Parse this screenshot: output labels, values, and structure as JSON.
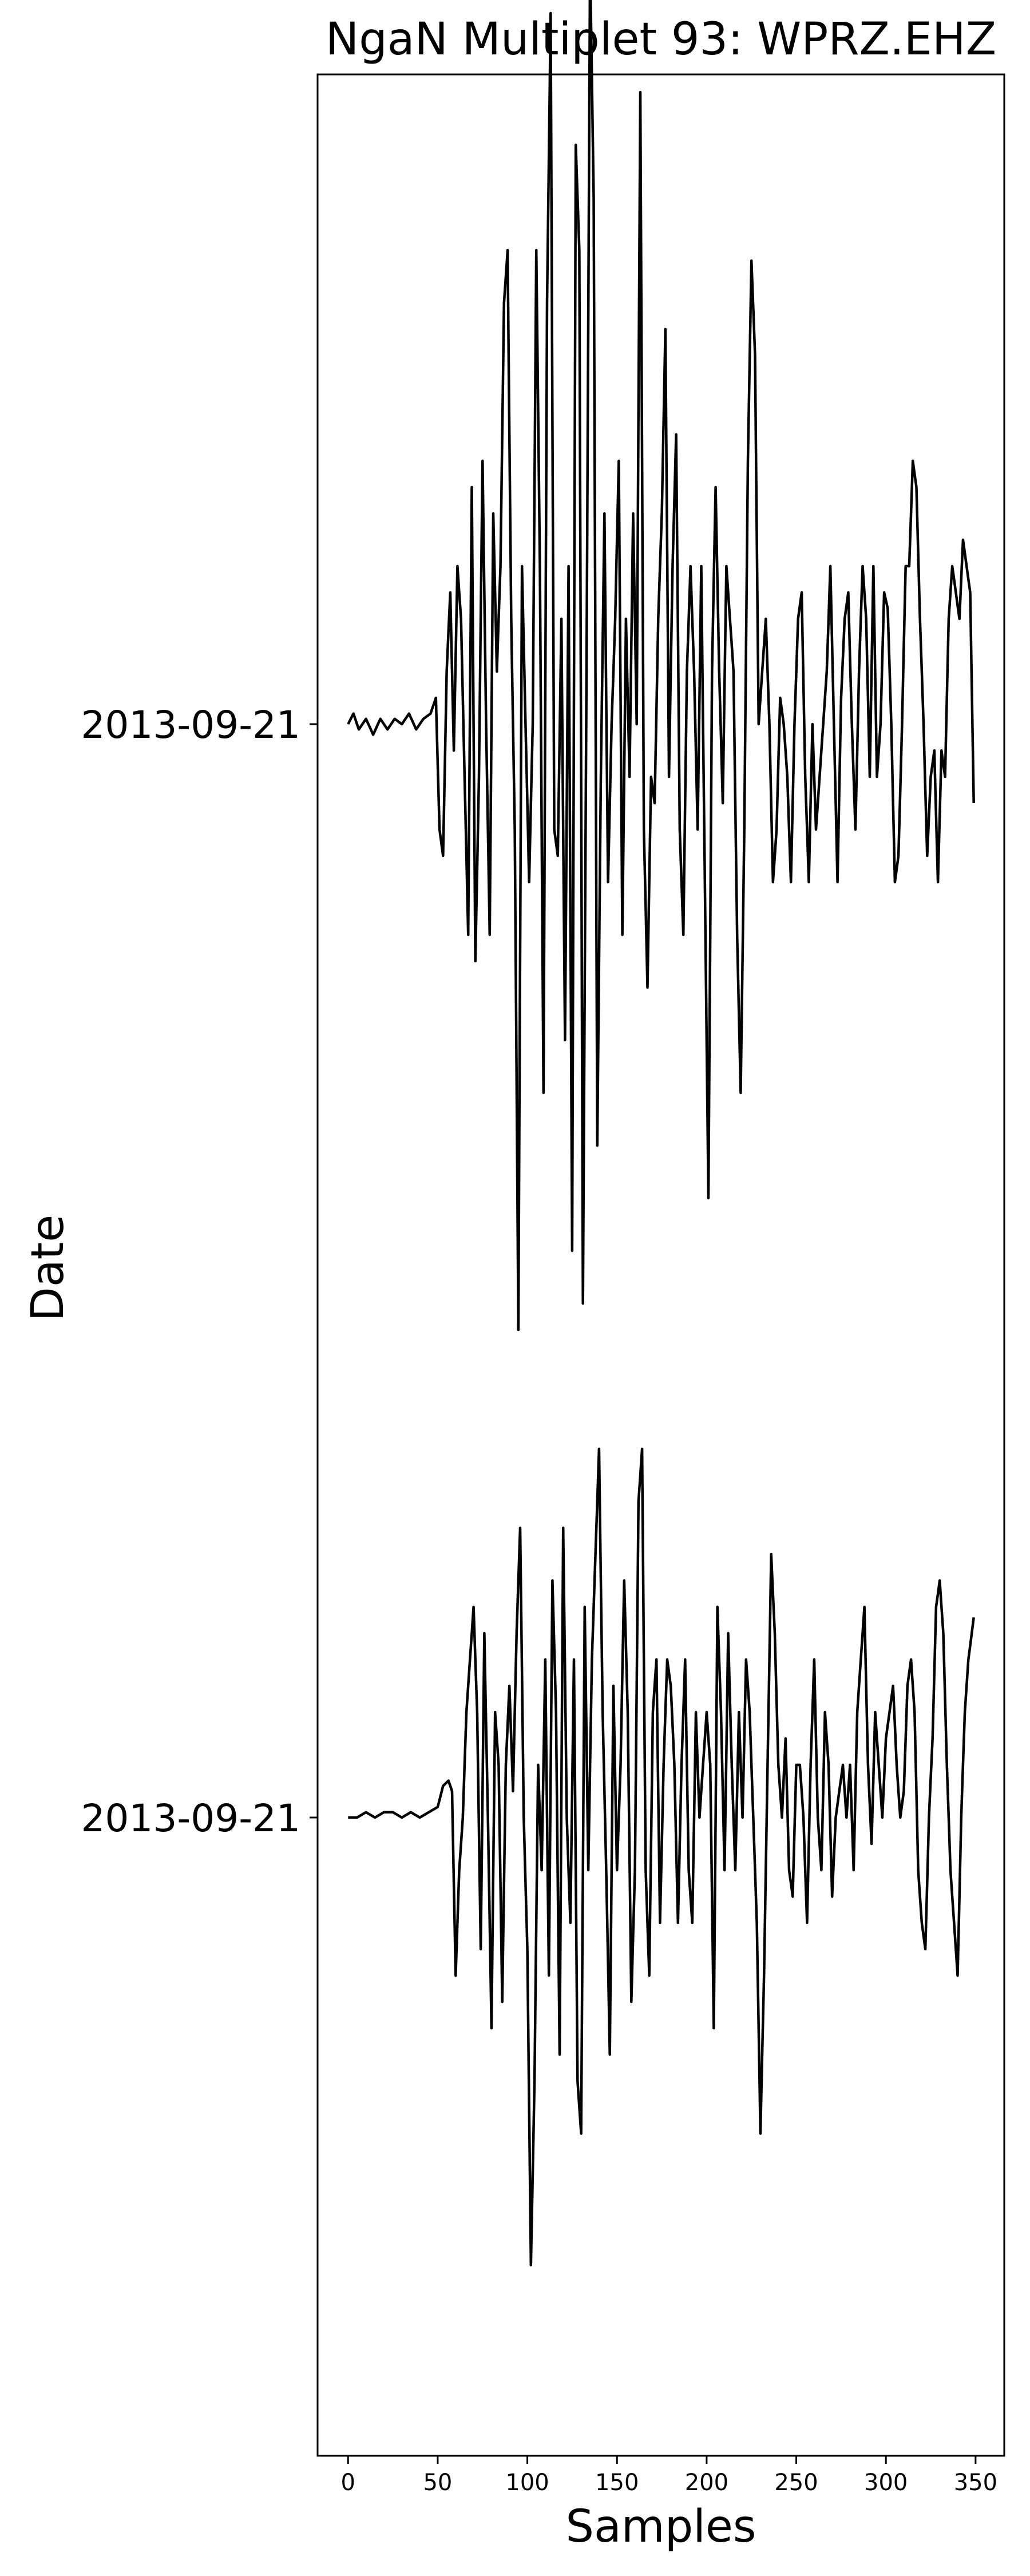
{
  "chart_data": {
    "type": "line",
    "title": "NgaN Multiplet 93: WPRZ.EHZ",
    "xlabel": "Samples",
    "ylabel": "Date",
    "xlim": [
      -17,
      366
    ],
    "x_ticks": [
      0,
      50,
      100,
      150,
      200,
      250,
      300,
      350
    ],
    "grid": false,
    "legend": "none",
    "line_color": "#000000",
    "traces": [
      {
        "date_label": "2013-09-21",
        "sample_count": 350,
        "keypoints": [
          [
            0,
            0.0
          ],
          [
            3,
            0.02
          ],
          [
            6,
            -0.01
          ],
          [
            10,
            0.01
          ],
          [
            14,
            -0.02
          ],
          [
            18,
            0.01
          ],
          [
            22,
            -0.01
          ],
          [
            26,
            0.01
          ],
          [
            30,
            0.0
          ],
          [
            34,
            0.02
          ],
          [
            38,
            -0.01
          ],
          [
            42,
            0.01
          ],
          [
            46,
            0.02
          ],
          [
            49,
            0.05
          ],
          [
            51,
            -0.2
          ],
          [
            53,
            -0.25
          ],
          [
            55,
            0.1
          ],
          [
            57,
            0.25
          ],
          [
            59,
            -0.05
          ],
          [
            61,
            0.3
          ],
          [
            63,
            0.2
          ],
          [
            65,
            -0.1
          ],
          [
            67,
            -0.4
          ],
          [
            69,
            0.45
          ],
          [
            71,
            -0.45
          ],
          [
            73,
            -0.1
          ],
          [
            75,
            0.5
          ],
          [
            77,
            0.0
          ],
          [
            79,
            -0.4
          ],
          [
            81,
            0.4
          ],
          [
            83,
            0.1
          ],
          [
            85,
            0.3
          ],
          [
            87,
            0.8
          ],
          [
            89,
            0.9
          ],
          [
            91,
            0.2
          ],
          [
            93,
            -0.2
          ],
          [
            95,
            -1.15
          ],
          [
            97,
            0.3
          ],
          [
            99,
            0.0
          ],
          [
            101,
            -0.3
          ],
          [
            103,
            0.0
          ],
          [
            105,
            0.9
          ],
          [
            107,
            0.3
          ],
          [
            109,
            -0.7
          ],
          [
            111,
            0.8
          ],
          [
            113,
            1.35
          ],
          [
            115,
            -0.2
          ],
          [
            117,
            -0.25
          ],
          [
            119,
            0.2
          ],
          [
            121,
            -0.6
          ],
          [
            123,
            0.3
          ],
          [
            125,
            -1.0
          ],
          [
            127,
            1.1
          ],
          [
            129,
            0.9
          ],
          [
            131,
            -1.1
          ],
          [
            133,
            0.1
          ],
          [
            135,
            1.45
          ],
          [
            137,
            1.0
          ],
          [
            139,
            -0.8
          ],
          [
            141,
            -0.1
          ],
          [
            143,
            0.4
          ],
          [
            145,
            -0.3
          ],
          [
            147,
            0.0
          ],
          [
            149,
            0.2
          ],
          [
            151,
            0.5
          ],
          [
            153,
            -0.4
          ],
          [
            155,
            0.2
          ],
          [
            157,
            -0.1
          ],
          [
            159,
            0.4
          ],
          [
            161,
            0.0
          ],
          [
            163,
            1.2
          ],
          [
            165,
            -0.2
          ],
          [
            167,
            -0.5
          ],
          [
            169,
            -0.1
          ],
          [
            171,
            -0.15
          ],
          [
            173,
            0.2
          ],
          [
            175,
            0.4
          ],
          [
            177,
            0.75
          ],
          [
            179,
            -0.1
          ],
          [
            181,
            0.3
          ],
          [
            183,
            0.55
          ],
          [
            185,
            -0.2
          ],
          [
            187,
            -0.4
          ],
          [
            189,
            0.1
          ],
          [
            191,
            0.3
          ],
          [
            193,
            0.1
          ],
          [
            195,
            -0.2
          ],
          [
            197,
            0.3
          ],
          [
            199,
            -0.3
          ],
          [
            201,
            -0.9
          ],
          [
            203,
            0.1
          ],
          [
            205,
            0.45
          ],
          [
            207,
            0.1
          ],
          [
            209,
            -0.15
          ],
          [
            211,
            0.3
          ],
          [
            213,
            0.2
          ],
          [
            215,
            0.1
          ],
          [
            217,
            -0.4
          ],
          [
            219,
            -0.7
          ],
          [
            221,
            -0.2
          ],
          [
            223,
            0.5
          ],
          [
            225,
            0.88
          ],
          [
            227,
            0.7
          ],
          [
            229,
            0.0
          ],
          [
            231,
            0.1
          ],
          [
            233,
            0.2
          ],
          [
            235,
            0.0
          ],
          [
            237,
            -0.3
          ],
          [
            239,
            -0.2
          ],
          [
            241,
            0.05
          ],
          [
            243,
            0.0
          ],
          [
            245,
            -0.1
          ],
          [
            247,
            -0.3
          ],
          [
            249,
            0.0
          ],
          [
            251,
            0.2
          ],
          [
            253,
            0.25
          ],
          [
            255,
            -0.1
          ],
          [
            257,
            -0.3
          ],
          [
            259,
            0.0
          ],
          [
            261,
            -0.2
          ],
          [
            263,
            -0.1
          ],
          [
            265,
            0.0
          ],
          [
            267,
            0.1
          ],
          [
            269,
            0.3
          ],
          [
            271,
            0.0
          ],
          [
            273,
            -0.3
          ],
          [
            275,
            0.05
          ],
          [
            277,
            0.2
          ],
          [
            279,
            0.25
          ],
          [
            281,
            0.0
          ],
          [
            283,
            -0.2
          ],
          [
            285,
            0.1
          ],
          [
            287,
            0.3
          ],
          [
            289,
            0.2
          ],
          [
            291,
            -0.1
          ],
          [
            293,
            0.3
          ],
          [
            295,
            -0.1
          ],
          [
            297,
            0.0
          ],
          [
            299,
            0.25
          ],
          [
            301,
            0.22
          ],
          [
            303,
            0.0
          ],
          [
            305,
            -0.3
          ],
          [
            307,
            -0.25
          ],
          [
            309,
            0.0
          ],
          [
            311,
            0.3
          ],
          [
            313,
            0.3
          ],
          [
            315,
            0.5
          ],
          [
            317,
            0.45
          ],
          [
            319,
            0.2
          ],
          [
            321,
            0.0
          ],
          [
            323,
            -0.25
          ],
          [
            325,
            -0.1
          ],
          [
            327,
            -0.05
          ],
          [
            329,
            -0.3
          ],
          [
            331,
            -0.05
          ],
          [
            333,
            -0.1
          ],
          [
            335,
            0.2
          ],
          [
            337,
            0.3
          ],
          [
            339,
            0.25
          ],
          [
            341,
            0.2
          ],
          [
            343,
            0.35
          ],
          [
            345,
            0.3
          ],
          [
            347,
            0.25
          ],
          [
            349,
            -0.15
          ]
        ]
      },
      {
        "date_label": "2013-09-21",
        "sample_count": 350,
        "keypoints": [
          [
            0,
            0.0
          ],
          [
            5,
            0.0
          ],
          [
            10,
            0.01
          ],
          [
            15,
            0.0
          ],
          [
            20,
            0.01
          ],
          [
            25,
            0.01
          ],
          [
            30,
            0.0
          ],
          [
            35,
            0.01
          ],
          [
            40,
            0.0
          ],
          [
            45,
            0.01
          ],
          [
            50,
            0.02
          ],
          [
            53,
            0.06
          ],
          [
            56,
            0.07
          ],
          [
            58,
            0.05
          ],
          [
            60,
            -0.3
          ],
          [
            62,
            -0.1
          ],
          [
            64,
            0.0
          ],
          [
            66,
            0.2
          ],
          [
            68,
            0.3
          ],
          [
            70,
            0.4
          ],
          [
            72,
            0.2
          ],
          [
            74,
            -0.25
          ],
          [
            76,
            0.35
          ],
          [
            78,
            0.0
          ],
          [
            80,
            -0.4
          ],
          [
            82,
            0.2
          ],
          [
            84,
            0.1
          ],
          [
            86,
            -0.35
          ],
          [
            88,
            0.1
          ],
          [
            90,
            0.25
          ],
          [
            92,
            0.05
          ],
          [
            94,
            0.35
          ],
          [
            96,
            0.55
          ],
          [
            98,
            0.0
          ],
          [
            100,
            -0.25
          ],
          [
            102,
            -0.85
          ],
          [
            104,
            -0.5
          ],
          [
            106,
            0.1
          ],
          [
            108,
            -0.1
          ],
          [
            110,
            0.3
          ],
          [
            112,
            -0.3
          ],
          [
            114,
            0.45
          ],
          [
            116,
            0.2
          ],
          [
            118,
            -0.45
          ],
          [
            120,
            0.55
          ],
          [
            122,
            0.0
          ],
          [
            124,
            -0.2
          ],
          [
            126,
            0.3
          ],
          [
            128,
            -0.5
          ],
          [
            130,
            -0.6
          ],
          [
            132,
            0.4
          ],
          [
            134,
            -0.1
          ],
          [
            136,
            0.3
          ],
          [
            138,
            0.5
          ],
          [
            140,
            0.7
          ],
          [
            142,
            0.2
          ],
          [
            144,
            -0.1
          ],
          [
            146,
            -0.45
          ],
          [
            148,
            0.25
          ],
          [
            150,
            -0.1
          ],
          [
            152,
            0.1
          ],
          [
            154,
            0.45
          ],
          [
            156,
            0.2
          ],
          [
            158,
            -0.35
          ],
          [
            160,
            -0.1
          ],
          [
            162,
            0.6
          ],
          [
            164,
            0.7
          ],
          [
            166,
            -0.1
          ],
          [
            168,
            -0.3
          ],
          [
            170,
            0.2
          ],
          [
            172,
            0.3
          ],
          [
            174,
            -0.2
          ],
          [
            176,
            0.1
          ],
          [
            178,
            0.3
          ],
          [
            180,
            0.25
          ],
          [
            182,
            0.1
          ],
          [
            184,
            -0.2
          ],
          [
            186,
            0.1
          ],
          [
            188,
            0.3
          ],
          [
            190,
            -0.1
          ],
          [
            192,
            -0.2
          ],
          [
            194,
            0.2
          ],
          [
            196,
            0.0
          ],
          [
            198,
            0.1
          ],
          [
            200,
            0.2
          ],
          [
            202,
            0.1
          ],
          [
            204,
            -0.4
          ],
          [
            206,
            0.4
          ],
          [
            208,
            0.2
          ],
          [
            210,
            -0.1
          ],
          [
            212,
            0.35
          ],
          [
            214,
            0.1
          ],
          [
            216,
            -0.1
          ],
          [
            218,
            0.2
          ],
          [
            220,
            0.0
          ],
          [
            222,
            0.3
          ],
          [
            224,
            0.2
          ],
          [
            226,
            0.0
          ],
          [
            228,
            -0.2
          ],
          [
            230,
            -0.6
          ],
          [
            232,
            -0.3
          ],
          [
            234,
            0.1
          ],
          [
            236,
            0.5
          ],
          [
            238,
            0.35
          ],
          [
            240,
            0.1
          ],
          [
            242,
            0.0
          ],
          [
            244,
            0.15
          ],
          [
            246,
            -0.1
          ],
          [
            248,
            -0.15
          ],
          [
            250,
            0.1
          ],
          [
            252,
            0.1
          ],
          [
            254,
            0.0
          ],
          [
            256,
            -0.2
          ],
          [
            258,
            0.1
          ],
          [
            260,
            0.3
          ],
          [
            262,
            0.0
          ],
          [
            264,
            -0.1
          ],
          [
            266,
            0.2
          ],
          [
            268,
            0.1
          ],
          [
            270,
            -0.15
          ],
          [
            272,
            0.0
          ],
          [
            274,
            0.05
          ],
          [
            276,
            0.1
          ],
          [
            278,
            0.0
          ],
          [
            280,
            0.1
          ],
          [
            282,
            -0.1
          ],
          [
            284,
            0.2
          ],
          [
            286,
            0.3
          ],
          [
            288,
            0.4
          ],
          [
            290,
            0.1
          ],
          [
            292,
            -0.05
          ],
          [
            294,
            0.2
          ],
          [
            296,
            0.1
          ],
          [
            298,
            0.0
          ],
          [
            300,
            0.15
          ],
          [
            302,
            0.2
          ],
          [
            304,
            0.25
          ],
          [
            306,
            0.1
          ],
          [
            308,
            0.0
          ],
          [
            310,
            0.05
          ],
          [
            312,
            0.25
          ],
          [
            314,
            0.3
          ],
          [
            316,
            0.2
          ],
          [
            318,
            -0.1
          ],
          [
            320,
            -0.2
          ],
          [
            322,
            -0.25
          ],
          [
            324,
            0.0
          ],
          [
            326,
            0.15
          ],
          [
            328,
            0.4
          ],
          [
            330,
            0.45
          ],
          [
            332,
            0.35
          ],
          [
            334,
            0.1
          ],
          [
            336,
            -0.1
          ],
          [
            338,
            -0.2
          ],
          [
            340,
            -0.3
          ],
          [
            342,
            0.0
          ],
          [
            344,
            0.2
          ],
          [
            346,
            0.3
          ],
          [
            349,
            0.38
          ]
        ]
      }
    ]
  }
}
